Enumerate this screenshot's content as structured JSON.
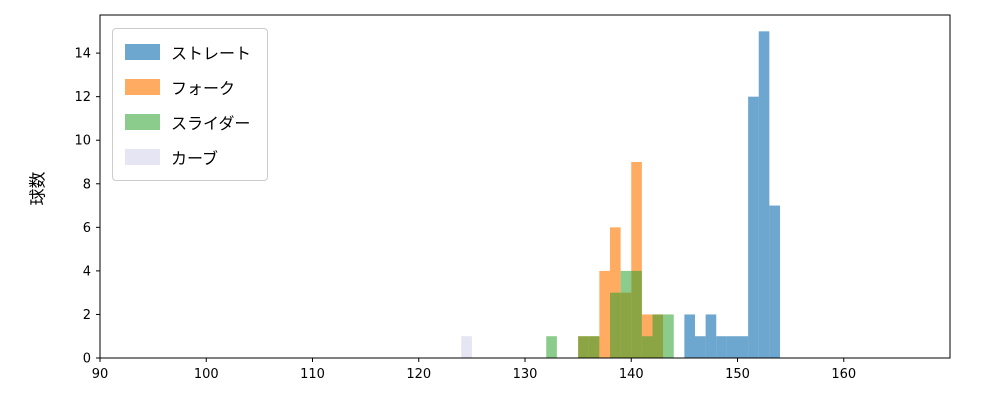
{
  "chart_data": {
    "type": "bar",
    "subtype": "histogram",
    "title": "",
    "xlabel": "",
    "ylabel": "球数",
    "xlim": [
      90,
      170
    ],
    "ylim": [
      0,
      15.75
    ],
    "x_ticks": [
      90,
      100,
      110,
      120,
      130,
      140,
      150,
      160
    ],
    "y_ticks": [
      0,
      2,
      4,
      6,
      8,
      10,
      12,
      14
    ],
    "bin_width": 1,
    "grid": false,
    "legend_position": "upper left",
    "series": [
      {
        "name": "ストレート",
        "color": "rgba(31,119,180,0.65)",
        "bins": [
          [
            145,
            2
          ],
          [
            146,
            1
          ],
          [
            147,
            2
          ],
          [
            148,
            1
          ],
          [
            149,
            1
          ],
          [
            150,
            1
          ],
          [
            151,
            12
          ],
          [
            152,
            15
          ],
          [
            153,
            7
          ]
        ]
      },
      {
        "name": "フォーク",
        "color": "rgba(255,127,14,0.65)",
        "bins": [
          [
            135,
            1
          ],
          [
            136,
            1
          ],
          [
            137,
            4
          ],
          [
            138,
            6
          ],
          [
            139,
            3
          ],
          [
            140,
            9
          ],
          [
            141,
            2
          ],
          [
            142,
            2
          ]
        ]
      },
      {
        "name": "スライダー",
        "color": "rgba(44,160,44,0.55)",
        "bins": [
          [
            132,
            1
          ],
          [
            135,
            1
          ],
          [
            136,
            1
          ],
          [
            138,
            3
          ],
          [
            139,
            4
          ],
          [
            140,
            4
          ],
          [
            141,
            1
          ],
          [
            142,
            2
          ],
          [
            143,
            2
          ]
        ]
      },
      {
        "name": "カーブ",
        "color": "rgba(170,170,215,0.30)",
        "bins": [
          [
            124,
            1
          ]
        ]
      }
    ]
  }
}
